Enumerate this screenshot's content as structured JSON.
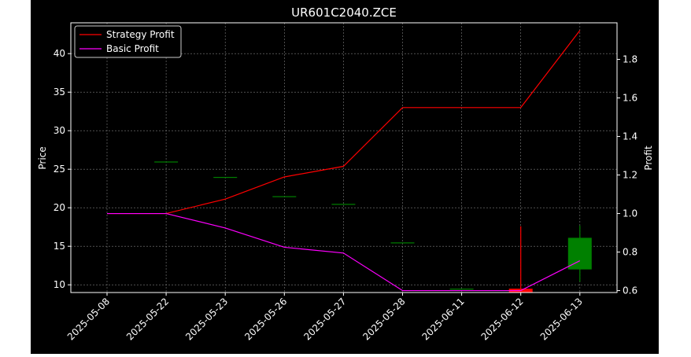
{
  "chart_data": {
    "type": "candlestick+line",
    "title": "UR601C2040.ZCE",
    "xlabel": "",
    "ylabel_left": "Price",
    "ylabel_right": "Profit",
    "categories": [
      "2025-05-08",
      "2025-05-22",
      "2025-05-23",
      "2025-05-26",
      "2025-05-27",
      "2025-05-28",
      "2025-06-11",
      "2025-06-12",
      "2025-06-13"
    ],
    "ylim_left": [
      9.0,
      44.0
    ],
    "ylim_right": [
      0.59,
      1.99
    ],
    "yticks_left": [
      10,
      15,
      20,
      25,
      30,
      35,
      40
    ],
    "yticks_right": [
      0.6,
      0.8,
      1.0,
      1.2,
      1.4,
      1.6,
      1.8
    ],
    "grid": true,
    "legend_position": "top-left",
    "candles": [
      {
        "date": "2025-05-08",
        "open": null,
        "high": null,
        "low": null,
        "close": null
      },
      {
        "date": "2025-05-22",
        "open": 26.0,
        "high": 26.0,
        "low": 26.0,
        "close": 26.0
      },
      {
        "date": "2025-05-23",
        "open": 24.0,
        "high": 24.0,
        "low": 24.0,
        "close": 24.0
      },
      {
        "date": "2025-05-26",
        "open": 21.5,
        "high": 21.5,
        "low": 21.5,
        "close": 21.5
      },
      {
        "date": "2025-05-27",
        "open": 20.5,
        "high": 20.5,
        "low": 20.5,
        "close": 20.5
      },
      {
        "date": "2025-05-28",
        "open": 15.5,
        "high": 15.5,
        "low": 15.5,
        "close": 15.5
      },
      {
        "date": "2025-06-11",
        "open": 9.5,
        "high": 9.5,
        "low": 9.5,
        "close": 9.5
      },
      {
        "date": "2025-06-12",
        "open": 9.5,
        "high": 17.6,
        "low": 9.0,
        "close": 9.0
      },
      {
        "date": "2025-06-13",
        "open": 12.0,
        "high": 17.7,
        "low": 10.4,
        "close": 16.1
      }
    ],
    "series": [
      {
        "name": "Strategy Profit",
        "color": "#ff0000",
        "values": [
          1.0,
          1.0,
          1.075,
          1.19,
          1.245,
          1.55,
          1.55,
          1.55,
          1.95
        ]
      },
      {
        "name": "Basic Profit",
        "color": "#ff00ff",
        "values": [
          1.0,
          1.0,
          0.925,
          0.825,
          0.795,
          0.6,
          0.6,
          0.6,
          0.755
        ]
      }
    ],
    "colors": {
      "up": "#008000",
      "down": "#ff0000",
      "axes_bg": "#000000",
      "text": "#ffffff",
      "grid": "#808080"
    }
  }
}
